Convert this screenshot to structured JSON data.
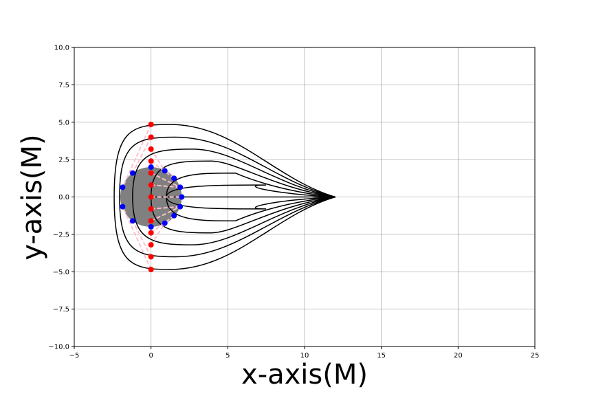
{
  "chart_data": {
    "type": "line",
    "title": "",
    "xlabel": "x-axis(M)",
    "ylabel": "y-axis(M)",
    "xlim": [
      -5,
      25
    ],
    "ylim": [
      -10,
      10
    ],
    "xticks": [
      -5,
      0,
      5,
      10,
      15,
      20,
      25
    ],
    "xtick_labels": [
      "−5",
      "0",
      "5",
      "10",
      "15",
      "20",
      "25"
    ],
    "yticks": [
      -10,
      -7.5,
      -5,
      -2.5,
      0,
      2.5,
      5,
      7.5,
      10
    ],
    "ytick_labels": [
      "−10.0",
      "−7.5",
      "−5.0",
      "−2.5",
      "0.0",
      "2.5",
      "5.0",
      "7.5",
      "10.0"
    ],
    "grid": true,
    "black_hole": {
      "center": [
        0,
        0
      ],
      "radius": 2.0,
      "color": "#808080"
    },
    "observer": [
      12,
      0
    ],
    "ray_color": "#000000",
    "rays": [
      {
        "b": 4.85,
        "min_x": -2.4,
        "impact": [
          0,
          4.85
        ],
        "ring": [
          -1.85,
          0.65
        ],
        "tip_x": 1.2
      },
      {
        "b": 4.0,
        "min_x": -2.05,
        "impact": [
          0,
          4.0
        ],
        "ring": [
          -1.2,
          1.6
        ],
        "tip_x": 1.6
      },
      {
        "b": 3.2,
        "min_x": -1.2,
        "impact": [
          0,
          3.2
        ],
        "ring": [
          0.9,
          1.75
        ],
        "tip_x": 2.7
      },
      {
        "b": 2.4,
        "min_x": 0.0,
        "impact": [
          0,
          2.4
        ],
        "ring": [
          1.5,
          1.25
        ],
        "tip_x": 3.9
      },
      {
        "b": 1.6,
        "min_x": 1.0,
        "impact": [
          0,
          1.6
        ],
        "ring": [
          1.9,
          0.65
        ],
        "tip_x": 5.5
      },
      {
        "b": 0.8,
        "min_x": 1.0,
        "impact": [
          0,
          0.8
        ],
        "ring": [
          1.9,
          0.65
        ],
        "tip_x": 7.5
      },
      {
        "b": 0.0,
        "min_x": 0.0,
        "impact": [
          0,
          0.0
        ],
        "ring": [
          2.0,
          0.0
        ],
        "tip_x": 12
      },
      {
        "b": -0.8,
        "min_x": 1.0,
        "impact": [
          0,
          -0.8
        ],
        "ring": [
          1.9,
          -0.65
        ],
        "tip_x": 7.5
      },
      {
        "b": -1.6,
        "min_x": 1.0,
        "impact": [
          0,
          -1.6
        ],
        "ring": [
          1.9,
          -0.65
        ],
        "tip_x": 5.5
      },
      {
        "b": -2.4,
        "min_x": 0.0,
        "impact": [
          0,
          -2.4
        ],
        "ring": [
          1.5,
          -1.25
        ],
        "tip_x": 3.9
      },
      {
        "b": -3.2,
        "min_x": -1.2,
        "impact": [
          0,
          -3.2
        ],
        "ring": [
          0.9,
          -1.75
        ],
        "tip_x": 2.7
      },
      {
        "b": -4.0,
        "min_x": -2.05,
        "impact": [
          0,
          -4.0
        ],
        "ring": [
          -1.2,
          -1.6
        ],
        "tip_x": 1.6
      },
      {
        "b": -4.85,
        "min_x": -2.4,
        "impact": [
          0,
          -4.85
        ],
        "ring": [
          -1.85,
          -0.65
        ],
        "tip_x": 1.2
      }
    ],
    "impact_points": {
      "color": "#ff0000",
      "points": [
        [
          0,
          4.85
        ],
        [
          0,
          4.0
        ],
        [
          0,
          3.2
        ],
        [
          0,
          2.4
        ],
        [
          0,
          1.6
        ],
        [
          0,
          0.8
        ],
        [
          0,
          0.0
        ],
        [
          0,
          -0.8
        ],
        [
          0,
          -1.6
        ],
        [
          0,
          -2.4
        ],
        [
          0,
          -3.2
        ],
        [
          0,
          -4.0
        ],
        [
          0,
          -4.85
        ]
      ]
    },
    "ring_points": {
      "color": "#0000ff",
      "points": [
        [
          -1.85,
          0.65
        ],
        [
          -1.2,
          1.6
        ],
        [
          0,
          2.0
        ],
        [
          0.9,
          1.75
        ],
        [
          1.5,
          1.25
        ],
        [
          1.9,
          0.65
        ],
        [
          2.0,
          0.0
        ],
        [
          1.9,
          -0.65
        ],
        [
          1.5,
          -1.25
        ],
        [
          0.9,
          -1.75
        ],
        [
          0,
          -2.0
        ],
        [
          -1.2,
          -1.6
        ],
        [
          -1.85,
          -0.65
        ]
      ]
    },
    "dashed_links": {
      "color": "#ffc0cb",
      "pairs": [
        [
          [
            0,
            4.85
          ],
          [
            -1.85,
            0.65
          ]
        ],
        [
          [
            0,
            4.0
          ],
          [
            -1.2,
            1.6
          ]
        ],
        [
          [
            0,
            3.2
          ],
          [
            0.9,
            1.75
          ]
        ],
        [
          [
            0,
            2.4
          ],
          [
            1.5,
            1.25
          ]
        ],
        [
          [
            0,
            1.6
          ],
          [
            1.9,
            0.65
          ]
        ],
        [
          [
            0,
            0.8
          ],
          [
            1.9,
            0.65
          ]
        ],
        [
          [
            0,
            0.0
          ],
          [
            2.0,
            0.0
          ]
        ],
        [
          [
            0,
            -0.8
          ],
          [
            1.9,
            -0.65
          ]
        ],
        [
          [
            0,
            -1.6
          ],
          [
            1.9,
            -0.65
          ]
        ],
        [
          [
            0,
            -2.4
          ],
          [
            1.5,
            -1.25
          ]
        ],
        [
          [
            0,
            -3.2
          ],
          [
            0.9,
            -1.75
          ]
        ],
        [
          [
            0,
            -4.0
          ],
          [
            -1.2,
            -1.6
          ]
        ],
        [
          [
            0,
            -4.85
          ],
          [
            -1.85,
            -0.65
          ]
        ]
      ]
    }
  }
}
